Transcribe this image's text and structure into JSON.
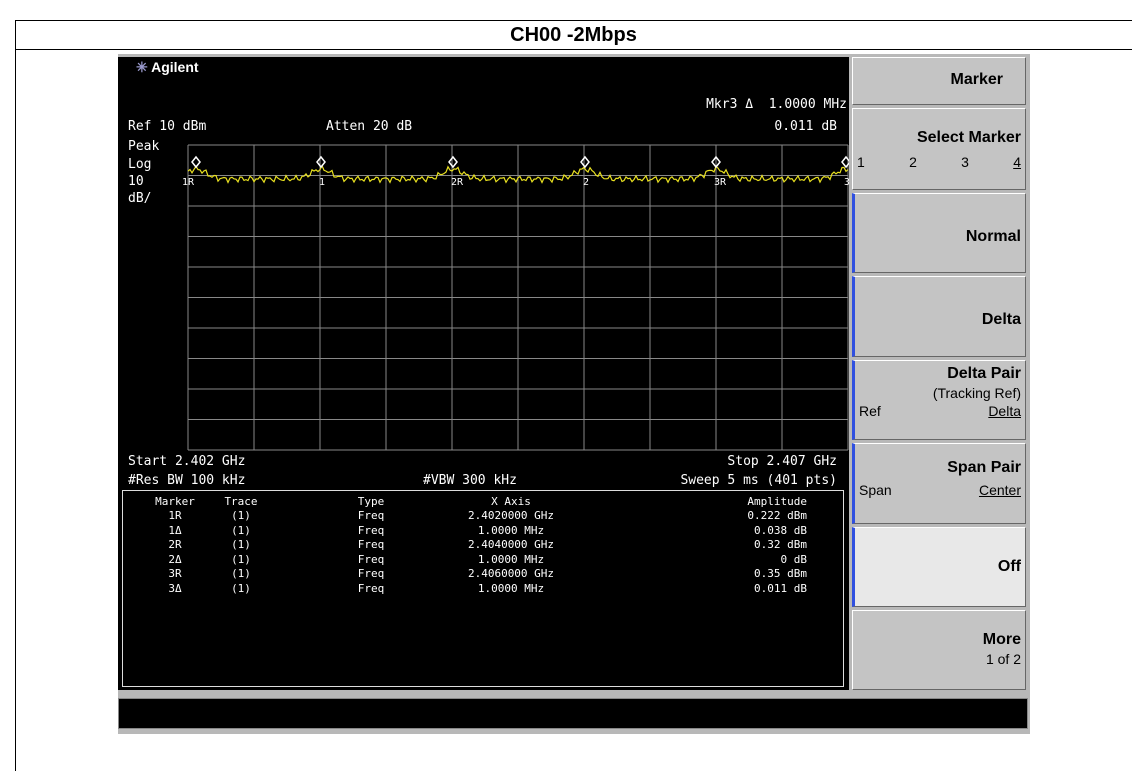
{
  "header": {
    "title": "CH00 -2Mbps"
  },
  "screen": {
    "brand": "Agilent",
    "marker_readout": "Mkr3 Δ  1.0000 MHz",
    "ref": "Ref 10 dBm",
    "atten": "Atten 20 dB",
    "marker_value": "0.011 dB",
    "scale": [
      "Peak",
      "Log",
      "10",
      "dB/"
    ],
    "start": "Start 2.402 GHz",
    "stop": "Stop 2.407 GHz",
    "rbw": "#Res BW 100 kHz",
    "vbw": "#VBW 300 kHz",
    "sweep": "Sweep 5 ms (401 pts)",
    "trace_markers": [
      "1R",
      "1",
      "2R",
      "2",
      "3R",
      "3"
    ]
  },
  "table": {
    "columns": [
      "Marker",
      "Trace",
      "Type",
      "X Axis",
      "Amplitude"
    ],
    "rows": [
      [
        "1R",
        "(1)",
        "Freq",
        "2.4020000 GHz",
        "0.222 dBm"
      ],
      [
        "1Δ",
        "(1)",
        "Freq",
        "1.0000 MHz",
        "0.038 dB"
      ],
      [
        "2R",
        "(1)",
        "Freq",
        "2.4040000 GHz",
        "0.32 dBm"
      ],
      [
        "2Δ",
        "(1)",
        "Freq",
        "1.0000 MHz",
        "0 dB"
      ],
      [
        "3R",
        "(1)",
        "Freq",
        "2.4060000 GHz",
        "0.35 dBm"
      ],
      [
        "3Δ",
        "(1)",
        "Freq",
        "1.0000 MHz",
        "0.011 dB"
      ]
    ]
  },
  "softkeys": {
    "title": "Marker",
    "select_marker": {
      "label": "Select Marker",
      "options": [
        "1",
        "2",
        "3",
        "4"
      ]
    },
    "normal": "Normal",
    "delta": "Delta",
    "delta_pair": {
      "label": "Delta Pair",
      "sublabel": "(Tracking Ref)",
      "left": "Ref",
      "right": "Delta"
    },
    "span_pair": {
      "label": "Span Pair",
      "left": "Span",
      "right": "Center"
    },
    "off": "Off",
    "more": {
      "label": "More",
      "sublabel": "1 of 2"
    }
  }
}
